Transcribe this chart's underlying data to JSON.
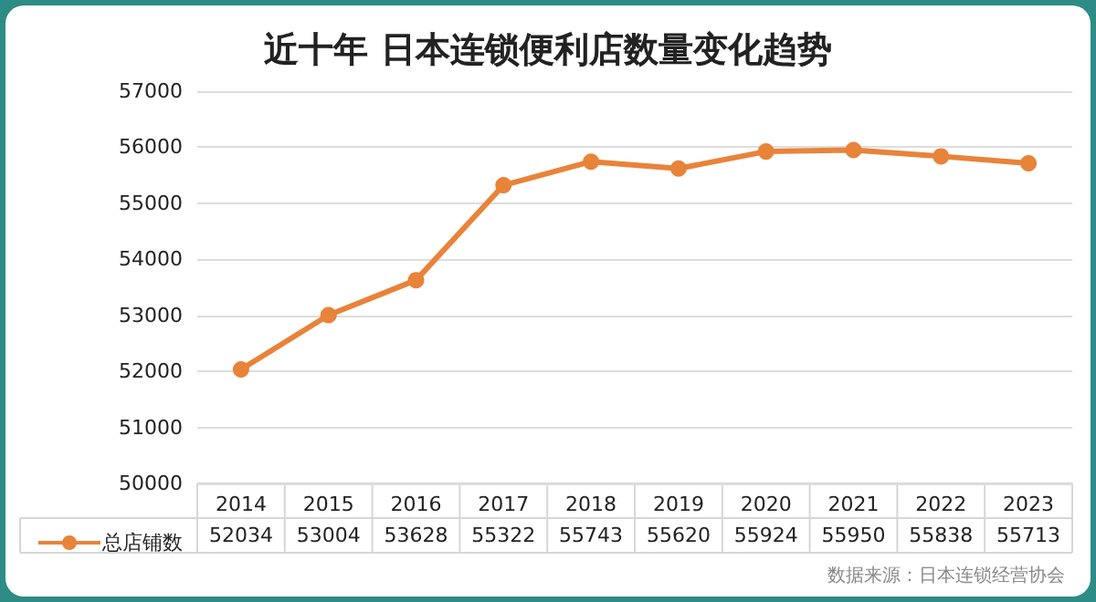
{
  "chart_data": {
    "type": "line",
    "title": "近十年 日本连锁便利店数量变化趋势",
    "categories": [
      "2014",
      "2015",
      "2016",
      "2017",
      "2018",
      "2019",
      "2020",
      "2021",
      "2022",
      "2023"
    ],
    "series": [
      {
        "name": "总店铺数",
        "color": "#e8833a",
        "values": [
          52034,
          53004,
          53628,
          55322,
          55743,
          55620,
          55924,
          55950,
          55838,
          55713
        ]
      }
    ],
    "ylim": [
      50000,
      57000
    ],
    "yticks": [
      50000,
      51000,
      52000,
      53000,
      54000,
      55000,
      56000,
      57000
    ],
    "grid": "y",
    "legend": "bottom left",
    "marker": "circle",
    "line_style": "solid",
    "data_labels": true,
    "annotations": [
      "数据来源：日本连锁经营协会"
    ]
  }
}
